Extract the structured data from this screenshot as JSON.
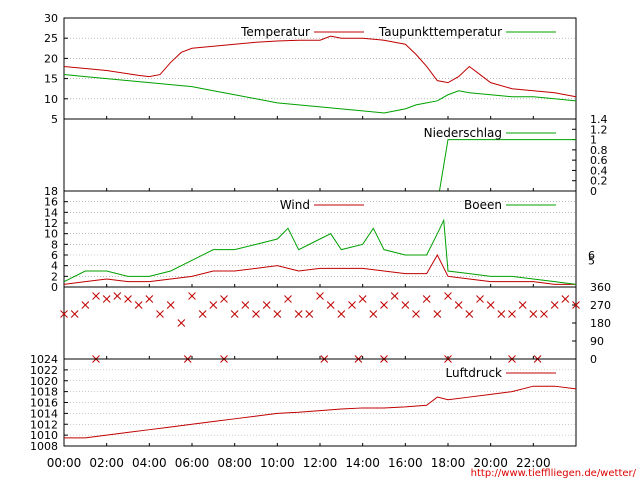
{
  "chart_data": [
    {
      "type": "line",
      "panel": "temperature",
      "ylim": [
        5,
        30
      ],
      "yticks": [
        5,
        10,
        15,
        20,
        25,
        30
      ],
      "grid": true,
      "legend_placement": "top-right",
      "series": [
        {
          "name": "Temperatur",
          "color": "#c00000",
          "x": [
            0,
            1,
            2,
            3,
            3.5,
            4,
            4.5,
            5,
            5.5,
            6,
            7,
            8,
            9,
            10,
            11,
            12,
            12.5,
            13,
            14,
            15,
            15.5,
            16,
            16.5,
            17,
            17.5,
            18,
            18.5,
            19,
            19.5,
            20,
            21,
            22,
            23,
            24
          ],
          "y": [
            18,
            17.5,
            17,
            16.2,
            15.8,
            15.5,
            16,
            19,
            21.5,
            22.5,
            23,
            23.5,
            24,
            24.3,
            24.5,
            24.5,
            25.5,
            25,
            25,
            24.5,
            24,
            23.5,
            21,
            18,
            14.5,
            14,
            15.5,
            18,
            16,
            14,
            12.5,
            12,
            11.5,
            10.5
          ]
        },
        {
          "name": "Taupunkttemperatur",
          "color": "#00a000",
          "x": [
            0,
            1,
            2,
            3,
            4,
            5,
            6,
            7,
            8,
            9,
            10,
            11,
            12,
            13,
            14,
            15,
            16,
            16.5,
            17,
            17.5,
            18,
            18.5,
            19,
            20,
            21,
            22,
            23,
            24
          ],
          "y": [
            16,
            15.5,
            15,
            14.5,
            14,
            13.5,
            13,
            12,
            11,
            10,
            9,
            8.5,
            8,
            7.5,
            7,
            6.5,
            7.5,
            8.5,
            9,
            9.5,
            11,
            12,
            11.5,
            11,
            10.5,
            10.5,
            10,
            9.5
          ]
        }
      ]
    },
    {
      "type": "line",
      "panel": "precipitation",
      "ylim": [
        0,
        1.4
      ],
      "yticks": [
        0,
        0.2,
        0.4,
        0.6,
        0.8,
        1,
        1.2,
        1.4
      ],
      "legend_placement": "top-right",
      "series": [
        {
          "name": "Niederschlag",
          "color": "#00a000",
          "x": [
            0,
            17.6,
            18,
            24
          ],
          "y": [
            0,
            0,
            1,
            1
          ]
        }
      ]
    },
    {
      "type": "line",
      "panel": "wind",
      "ylim": [
        0,
        18
      ],
      "yticks": [
        0,
        2,
        4,
        6,
        8,
        10,
        12,
        14,
        16,
        18
      ],
      "right_ticks": [
        5,
        6
      ],
      "legend_placement": "top-right",
      "series": [
        {
          "name": "Wind",
          "color": "#c00000",
          "x": [
            0,
            1,
            2,
            3,
            4,
            5,
            6,
            7,
            8,
            9,
            10,
            11,
            12,
            13,
            14,
            15,
            16,
            17,
            17.5,
            18,
            19,
            20,
            21,
            22,
            23,
            24
          ],
          "y": [
            0.5,
            1,
            1.5,
            1,
            1,
            1.5,
            2,
            3,
            3,
            3.5,
            4,
            3,
            3.5,
            3.5,
            3.5,
            3,
            2.5,
            2.5,
            6,
            2,
            1.5,
            1,
            1,
            1,
            0.5,
            0.5
          ]
        },
        {
          "name": "Boeen",
          "color": "#00a000",
          "x": [
            0,
            1,
            2,
            3,
            4,
            5,
            6,
            7,
            8,
            9,
            10,
            10.5,
            11,
            12,
            12.5,
            13,
            14,
            14.5,
            15,
            16,
            17,
            17.5,
            17.8,
            18,
            19,
            20,
            21,
            22,
            23,
            24
          ],
          "y": [
            1,
            3,
            3,
            2,
            2,
            3,
            5,
            7,
            7,
            8,
            9,
            11,
            7,
            9,
            10,
            7,
            8,
            11,
            7,
            6,
            6,
            10,
            12.5,
            3,
            2.5,
            2,
            2,
            1.5,
            1,
            0.5
          ]
        }
      ]
    },
    {
      "type": "scatter",
      "panel": "wind-direction",
      "ylim": [
        0,
        360
      ],
      "yticks": [
        0,
        90,
        180,
        270,
        360
      ],
      "color": "#c00000",
      "x": [
        0,
        0.5,
        1,
        1.5,
        2,
        2.5,
        3,
        3.5,
        4,
        4.5,
        5,
        5.5,
        6,
        6.5,
        7,
        7.5,
        8,
        8.5,
        9,
        9.5,
        10,
        10.5,
        11,
        11.5,
        12,
        12.5,
        13,
        13.5,
        14,
        14.5,
        15,
        15.5,
        16,
        16.5,
        17,
        17.5,
        18,
        18.5,
        19,
        19.5,
        20,
        20.5,
        21,
        21.5,
        22,
        22.5,
        23,
        23.5,
        24
      ],
      "y": [
        225,
        225,
        270,
        315,
        300,
        315,
        300,
        270,
        300,
        225,
        270,
        180,
        315,
        225,
        270,
        300,
        225,
        270,
        225,
        270,
        225,
        300,
        225,
        225,
        315,
        270,
        225,
        270,
        300,
        225,
        270,
        315,
        270,
        225,
        300,
        225,
        315,
        270,
        225,
        300,
        270,
        225,
        225,
        270,
        225,
        225,
        270,
        300,
        270
      ],
      "x_extra": [
        1.5,
        5.8,
        7.5,
        12.2,
        13.8,
        15,
        18,
        21,
        22.2
      ],
      "y_extra": [
        0,
        0,
        0,
        0,
        0,
        0,
        0,
        0,
        0
      ]
    },
    {
      "type": "line",
      "panel": "pressure",
      "ylim": [
        1008,
        1024
      ],
      "yticks": [
        1008,
        1010,
        1012,
        1014,
        1016,
        1018,
        1020,
        1022,
        1024
      ],
      "legend_placement": "top-right",
      "series": [
        {
          "name": "Luftdruck",
          "color": "#c00000",
          "x": [
            0,
            1,
            2,
            3,
            4,
            5,
            6,
            7,
            8,
            9,
            10,
            11,
            12,
            13,
            14,
            15,
            16,
            17,
            17.5,
            18,
            19,
            20,
            21,
            22,
            23,
            24
          ],
          "y": [
            1009.5,
            1009.5,
            1010,
            1010.5,
            1011,
            1011.5,
            1012,
            1012.5,
            1013,
            1013.5,
            1014,
            1014.2,
            1014.5,
            1014.8,
            1015,
            1015,
            1015.2,
            1015.5,
            1017,
            1016.5,
            1017,
            1017.5,
            1018,
            1019,
            1019,
            1018.5
          ]
        }
      ]
    }
  ],
  "x_axis": {
    "ticks": [
      "00:00",
      "02:00",
      "04:00",
      "06:00",
      "08:00",
      "10:00",
      "12:00",
      "14:00",
      "16:00",
      "18:00",
      "20:00",
      "22:00"
    ]
  },
  "footer": {
    "url": "http://www.tiefflliegen.de/wetter/"
  }
}
